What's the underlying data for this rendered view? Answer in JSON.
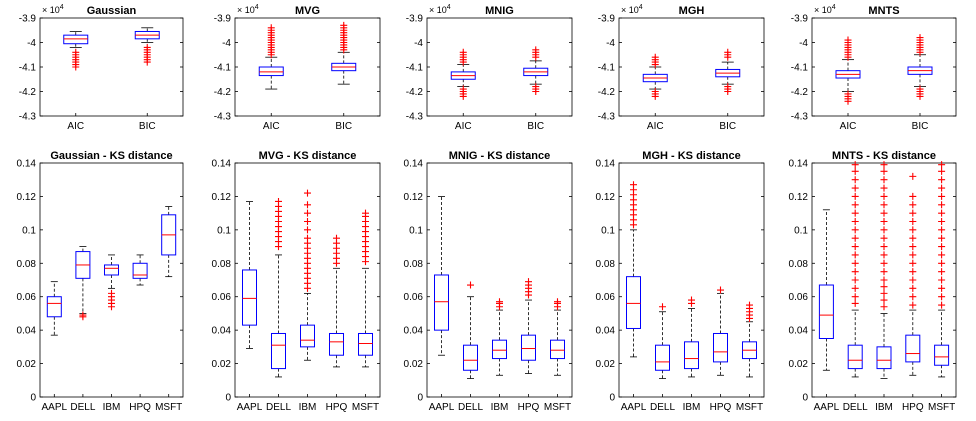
{
  "colors": {
    "box": "#0000ff",
    "median": "#ff0000",
    "outlier": "#ff0000",
    "whisker": "#000000",
    "axis": "#000000"
  },
  "chart_data": [
    {
      "type": "box",
      "title": "Gaussian",
      "exponent_label": "× 10",
      "exponent": "4",
      "categories": [
        "AIC",
        "BIC"
      ],
      "ylim": [
        -4.3,
        -3.9
      ],
      "yticks": [
        -4.3,
        -4.2,
        -4.1,
        -4,
        -3.9
      ],
      "ytick_labels": [
        "-4.3",
        "-4.2",
        "-4.1",
        "-4",
        "-3.9"
      ],
      "boxes": [
        {
          "low": -4.02,
          "q1": -4.005,
          "median": -3.985,
          "q3": -3.97,
          "high": -3.955,
          "outliers": [
            -4.04,
            -4.05,
            -4.06,
            -4.07,
            -4.08,
            -4.09,
            -4.1
          ]
        },
        {
          "low": -4.0,
          "q1": -3.985,
          "median": -3.97,
          "q3": -3.955,
          "high": -3.94,
          "outliers": [
            -4.02,
            -4.03,
            -4.04,
            -4.05,
            -4.06,
            -4.07,
            -4.08
          ]
        }
      ]
    },
    {
      "type": "box",
      "title": "MVG",
      "exponent_label": "× 10",
      "exponent": "4",
      "categories": [
        "AIC",
        "BIC"
      ],
      "ylim": [
        -4.3,
        -3.9
      ],
      "yticks": [
        -4.3,
        -4.2,
        -4.1,
        -4,
        -3.9
      ],
      "ytick_labels": [
        "-4.3",
        "-4.2",
        "-4.1",
        "-4",
        "-3.9"
      ],
      "boxes": [
        {
          "low": -4.19,
          "q1": -4.135,
          "median": -4.12,
          "q3": -4.1,
          "high": -4.06,
          "outliers": [
            -3.94,
            -3.95,
            -3.96,
            -3.97,
            -3.98,
            -3.99,
            -4.0,
            -4.01,
            -4.02,
            -4.03,
            -4.04,
            -4.05
          ]
        },
        {
          "low": -4.17,
          "q1": -4.115,
          "median": -4.1,
          "q3": -4.085,
          "high": -4.04,
          "outliers": [
            -3.93,
            -3.94,
            -3.95,
            -3.96,
            -3.97,
            -3.98,
            -3.99,
            -4.0,
            -4.01,
            -4.02,
            -4.03
          ]
        }
      ]
    },
    {
      "type": "box",
      "title": "MNIG",
      "exponent_label": "× 10",
      "exponent": "4",
      "categories": [
        "AIC",
        "BIC"
      ],
      "ylim": [
        -4.3,
        -3.9
      ],
      "yticks": [
        -4.3,
        -4.2,
        -4.1,
        -4,
        -3.9
      ],
      "ytick_labels": [
        "-4.3",
        "-4.2",
        "-4.1",
        "-4",
        "-3.9"
      ],
      "boxes": [
        {
          "low": -4.18,
          "q1": -4.15,
          "median": -4.135,
          "q3": -4.12,
          "high": -4.09,
          "outliers": [
            -4.04,
            -4.05,
            -4.06,
            -4.07,
            -4.08,
            -4.19,
            -4.2,
            -4.21,
            -4.22
          ]
        },
        {
          "low": -4.17,
          "q1": -4.135,
          "median": -4.12,
          "q3": -4.105,
          "high": -4.075,
          "outliers": [
            -4.03,
            -4.04,
            -4.05,
            -4.06,
            -4.18,
            -4.19,
            -4.2
          ]
        }
      ]
    },
    {
      "type": "box",
      "title": "MGH",
      "exponent_label": "× 10",
      "exponent": "4",
      "categories": [
        "AIC",
        "BIC"
      ],
      "ylim": [
        -4.3,
        -3.9
      ],
      "yticks": [
        -4.3,
        -4.2,
        -4.1,
        -4,
        -3.9
      ],
      "ytick_labels": [
        "-4.3",
        "-4.2",
        "-4.1",
        "-4",
        "-3.9"
      ],
      "boxes": [
        {
          "low": -4.19,
          "q1": -4.16,
          "median": -4.145,
          "q3": -4.13,
          "high": -4.1,
          "outliers": [
            -4.06,
            -4.07,
            -4.08,
            -4.09,
            -4.2,
            -4.21,
            -4.22
          ]
        },
        {
          "low": -4.17,
          "q1": -4.14,
          "median": -4.125,
          "q3": -4.11,
          "high": -4.08,
          "outliers": [
            -4.04,
            -4.05,
            -4.06,
            -4.18,
            -4.19,
            -4.2
          ]
        }
      ]
    },
    {
      "type": "box",
      "title": "MNTS",
      "exponent_label": "× 10",
      "exponent": "4",
      "categories": [
        "AIC",
        "BIC"
      ],
      "ylim": [
        -4.3,
        -3.9
      ],
      "yticks": [
        -4.3,
        -4.2,
        -4.1,
        -4,
        -3.9
      ],
      "ytick_labels": [
        "-4.3",
        "-4.2",
        "-4.1",
        "-4",
        "-3.9"
      ],
      "boxes": [
        {
          "low": -4.2,
          "q1": -4.145,
          "median": -4.13,
          "q3": -4.115,
          "high": -4.07,
          "outliers": [
            -3.99,
            -4.0,
            -4.01,
            -4.02,
            -4.03,
            -4.04,
            -4.05,
            -4.06,
            -4.21,
            -4.22,
            -4.23,
            -4.24
          ]
        },
        {
          "low": -4.18,
          "q1": -4.13,
          "median": -4.115,
          "q3": -4.1,
          "high": -4.05,
          "outliers": [
            -3.98,
            -3.99,
            -4.0,
            -4.01,
            -4.02,
            -4.03,
            -4.04,
            -4.19,
            -4.2,
            -4.21,
            -4.22
          ]
        }
      ]
    },
    {
      "type": "box",
      "title": "Gaussian - KS distance",
      "categories": [
        "AAPL",
        "DELL",
        "IBM",
        "HPQ",
        "MSFT"
      ],
      "ylim": [
        0,
        0.14
      ],
      "yticks": [
        0,
        0.02,
        0.04,
        0.06,
        0.08,
        0.1,
        0.12,
        0.14
      ],
      "ytick_labels": [
        "0",
        "0.02",
        "0.04",
        "0.06",
        "0.08",
        "0.1",
        "0.12",
        "0.14"
      ],
      "boxes": [
        {
          "low": 0.037,
          "q1": 0.048,
          "median": 0.056,
          "q3": 0.06,
          "high": 0.069,
          "outliers": []
        },
        {
          "low": 0.05,
          "q1": 0.071,
          "median": 0.079,
          "q3": 0.087,
          "high": 0.09,
          "outliers": [
            0.048,
            0.049
          ]
        },
        {
          "low": 0.065,
          "q1": 0.073,
          "median": 0.077,
          "q3": 0.079,
          "high": 0.085,
          "outliers": [
            0.054,
            0.056,
            0.058,
            0.06,
            0.062
          ]
        },
        {
          "low": 0.067,
          "q1": 0.071,
          "median": 0.073,
          "q3": 0.08,
          "high": 0.085,
          "outliers": []
        },
        {
          "low": 0.072,
          "q1": 0.085,
          "median": 0.097,
          "q3": 0.109,
          "high": 0.114,
          "outliers": []
        }
      ]
    },
    {
      "type": "box",
      "title": "MVG - KS distance",
      "categories": [
        "AAPL",
        "DELL",
        "IBM",
        "HPQ",
        "MSFT"
      ],
      "ylim": [
        0,
        0.14
      ],
      "yticks": [
        0,
        0.02,
        0.04,
        0.06,
        0.08,
        0.1,
        0.12,
        0.14
      ],
      "ytick_labels": [
        "0",
        "0.02",
        "0.04",
        "0.06",
        "0.08",
        "0.1",
        "0.12",
        "0.14"
      ],
      "boxes": [
        {
          "low": 0.029,
          "q1": 0.043,
          "median": 0.059,
          "q3": 0.076,
          "high": 0.117,
          "outliers": []
        },
        {
          "low": 0.012,
          "q1": 0.017,
          "median": 0.031,
          "q3": 0.038,
          "high": 0.085,
          "outliers": [
            0.09,
            0.093,
            0.096,
            0.099,
            0.102,
            0.105,
            0.108,
            0.111,
            0.114,
            0.117
          ]
        },
        {
          "low": 0.022,
          "q1": 0.03,
          "median": 0.034,
          "q3": 0.043,
          "high": 0.062,
          "outliers": [
            0.065,
            0.068,
            0.071,
            0.074,
            0.077,
            0.08,
            0.083,
            0.086,
            0.089,
            0.092,
            0.095,
            0.1,
            0.105,
            0.11,
            0.115,
            0.122
          ]
        },
        {
          "low": 0.018,
          "q1": 0.025,
          "median": 0.033,
          "q3": 0.038,
          "high": 0.077,
          "outliers": [
            0.08,
            0.083,
            0.086,
            0.089,
            0.092,
            0.095
          ]
        },
        {
          "low": 0.018,
          "q1": 0.025,
          "median": 0.032,
          "q3": 0.038,
          "high": 0.077,
          "outliers": [
            0.081,
            0.084,
            0.087,
            0.09,
            0.093,
            0.096,
            0.099,
            0.102,
            0.105,
            0.108,
            0.11
          ]
        }
      ]
    },
    {
      "type": "box",
      "title": "MNIG - KS distance",
      "categories": [
        "AAPL",
        "DELL",
        "IBM",
        "HPQ",
        "MSFT"
      ],
      "ylim": [
        0,
        0.14
      ],
      "yticks": [
        0,
        0.02,
        0.04,
        0.06,
        0.08,
        0.1,
        0.12,
        0.14
      ],
      "ytick_labels": [
        "0",
        "0.02",
        "0.04",
        "0.06",
        "0.08",
        "0.1",
        "0.12",
        "0.14"
      ],
      "boxes": [
        {
          "low": 0.025,
          "q1": 0.04,
          "median": 0.057,
          "q3": 0.073,
          "high": 0.12,
          "outliers": []
        },
        {
          "low": 0.011,
          "q1": 0.016,
          "median": 0.022,
          "q3": 0.031,
          "high": 0.06,
          "outliers": [
            0.067
          ]
        },
        {
          "low": 0.013,
          "q1": 0.023,
          "median": 0.028,
          "q3": 0.034,
          "high": 0.052,
          "outliers": [
            0.054,
            0.056,
            0.057
          ]
        },
        {
          "low": 0.014,
          "q1": 0.022,
          "median": 0.029,
          "q3": 0.037,
          "high": 0.058,
          "outliers": [
            0.061,
            0.063,
            0.065,
            0.067,
            0.069
          ]
        },
        {
          "low": 0.013,
          "q1": 0.023,
          "median": 0.028,
          "q3": 0.034,
          "high": 0.052,
          "outliers": [
            0.054,
            0.056,
            0.057
          ]
        }
      ]
    },
    {
      "type": "box",
      "title": "MGH - KS distance",
      "categories": [
        "AAPL",
        "DELL",
        "IBM",
        "HPQ",
        "MSFT"
      ],
      "ylim": [
        0,
        0.14
      ],
      "yticks": [
        0,
        0.02,
        0.04,
        0.06,
        0.08,
        0.1,
        0.12,
        0.14
      ],
      "ytick_labels": [
        "0",
        "0.02",
        "0.04",
        "0.06",
        "0.08",
        "0.1",
        "0.12",
        "0.14"
      ],
      "boxes": [
        {
          "low": 0.024,
          "q1": 0.041,
          "median": 0.056,
          "q3": 0.072,
          "high": 0.1,
          "outliers": [
            0.103,
            0.106,
            0.109,
            0.112,
            0.115,
            0.118,
            0.121,
            0.124,
            0.127
          ]
        },
        {
          "low": 0.011,
          "q1": 0.016,
          "median": 0.021,
          "q3": 0.031,
          "high": 0.051,
          "outliers": [
            0.054
          ]
        },
        {
          "low": 0.012,
          "q1": 0.017,
          "median": 0.023,
          "q3": 0.033,
          "high": 0.053,
          "outliers": [
            0.056,
            0.058
          ]
        },
        {
          "low": 0.013,
          "q1": 0.021,
          "median": 0.027,
          "q3": 0.038,
          "high": 0.062,
          "outliers": [
            0.064
          ]
        },
        {
          "low": 0.012,
          "q1": 0.023,
          "median": 0.028,
          "q3": 0.033,
          "high": 0.045,
          "outliers": [
            0.047,
            0.049,
            0.051,
            0.053,
            0.055
          ]
        }
      ]
    },
    {
      "type": "box",
      "title": "MNTS - KS distance",
      "categories": [
        "AAPL",
        "DELL",
        "IBM",
        "HPQ",
        "MSFT"
      ],
      "ylim": [
        0,
        0.14
      ],
      "yticks": [
        0,
        0.02,
        0.04,
        0.06,
        0.08,
        0.1,
        0.12,
        0.14
      ],
      "ytick_labels": [
        "0",
        "0.02",
        "0.04",
        "0.06",
        "0.08",
        "0.1",
        "0.12",
        "0.14"
      ],
      "boxes": [
        {
          "low": 0.016,
          "q1": 0.035,
          "median": 0.049,
          "q3": 0.067,
          "high": 0.112,
          "outliers": []
        },
        {
          "low": 0.012,
          "q1": 0.017,
          "median": 0.022,
          "q3": 0.031,
          "high": 0.052,
          "outliers": [
            0.056,
            0.06,
            0.065,
            0.07,
            0.075,
            0.08,
            0.085,
            0.09,
            0.095,
            0.1,
            0.105,
            0.11,
            0.115,
            0.12,
            0.125,
            0.13,
            0.135,
            0.139
          ]
        },
        {
          "low": 0.011,
          "q1": 0.017,
          "median": 0.022,
          "q3": 0.03,
          "high": 0.05,
          "outliers": [
            0.054,
            0.058,
            0.062,
            0.066,
            0.07,
            0.075,
            0.08,
            0.085,
            0.09,
            0.095,
            0.1,
            0.105,
            0.11,
            0.115,
            0.12,
            0.125,
            0.13,
            0.135,
            0.139
          ]
        },
        {
          "low": 0.013,
          "q1": 0.021,
          "median": 0.026,
          "q3": 0.037,
          "high": 0.052,
          "outliers": [
            0.055,
            0.06,
            0.065,
            0.07,
            0.075,
            0.08,
            0.085,
            0.09,
            0.095,
            0.1,
            0.105,
            0.11,
            0.115,
            0.12,
            0.132
          ]
        },
        {
          "low": 0.012,
          "q1": 0.019,
          "median": 0.024,
          "q3": 0.031,
          "high": 0.052,
          "outliers": [
            0.055,
            0.06,
            0.065,
            0.07,
            0.075,
            0.08,
            0.085,
            0.09,
            0.095,
            0.1,
            0.105,
            0.11,
            0.115,
            0.12,
            0.125,
            0.13,
            0.135,
            0.139
          ]
        }
      ]
    }
  ]
}
